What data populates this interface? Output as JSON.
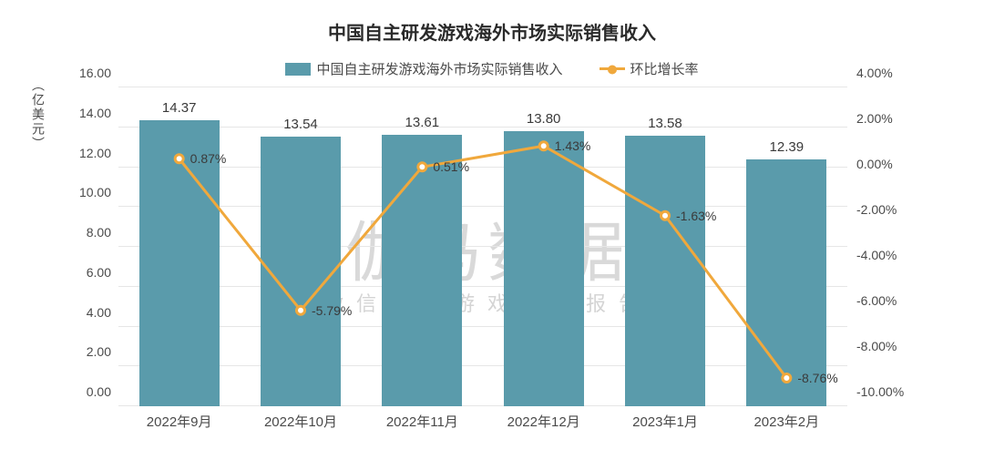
{
  "chart": {
    "type": "bar+line",
    "title": "中国自主研发游戏海外市场实际销售收入",
    "title_fontsize": 20,
    "title_color": "#2a2a2a",
    "legend": {
      "bar_label": "中国自主研发游戏海外市场实际销售收入",
      "line_label": "环比增长率"
    },
    "categories": [
      "2022年9月",
      "2022年10月",
      "2022年11月",
      "2022年12月",
      "2023年1月",
      "2023年2月"
    ],
    "bars": {
      "values": [
        14.37,
        13.54,
        13.61,
        13.8,
        13.58,
        12.39
      ],
      "labels": [
        "14.37",
        "13.54",
        "13.61",
        "13.80",
        "13.58",
        "12.39"
      ],
      "color": "#5a9bab",
      "ymin": 0.0,
      "ymax": 16.0,
      "ytick_step": 2.0,
      "ytick_labels": [
        "0.00",
        "2.00",
        "4.00",
        "6.00",
        "8.00",
        "10.00",
        "12.00",
        "14.00",
        "16.00"
      ],
      "ylabel": "（亿美元）"
    },
    "line": {
      "values_pct": [
        0.87,
        -5.79,
        0.51,
        1.43,
        -1.63,
        -8.76
      ],
      "labels": [
        "0.87%",
        "-5.79%",
        "0.51%",
        "1.43%",
        "-1.63%",
        "-8.76%"
      ],
      "color": "#f0a83c",
      "marker_fill": "#ffffff",
      "marker_size": 9,
      "line_width": 3,
      "ymin": -10.0,
      "ymax": 4.0,
      "ytick_step": 2.0,
      "ytick_labels": [
        "-10.00%",
        "-8.00%",
        "-6.00%",
        "-4.00%",
        "-2.00%",
        "0.00%",
        "2.00%",
        "4.00%"
      ]
    },
    "watermark_main": "伽马数据",
    "watermark_sub": "微信号：游戏产业报告",
    "background_color": "#ffffff",
    "grid_color": "#e6e6e6",
    "axis_font_color": "#4a4a4a",
    "axis_fontsize": 14
  }
}
